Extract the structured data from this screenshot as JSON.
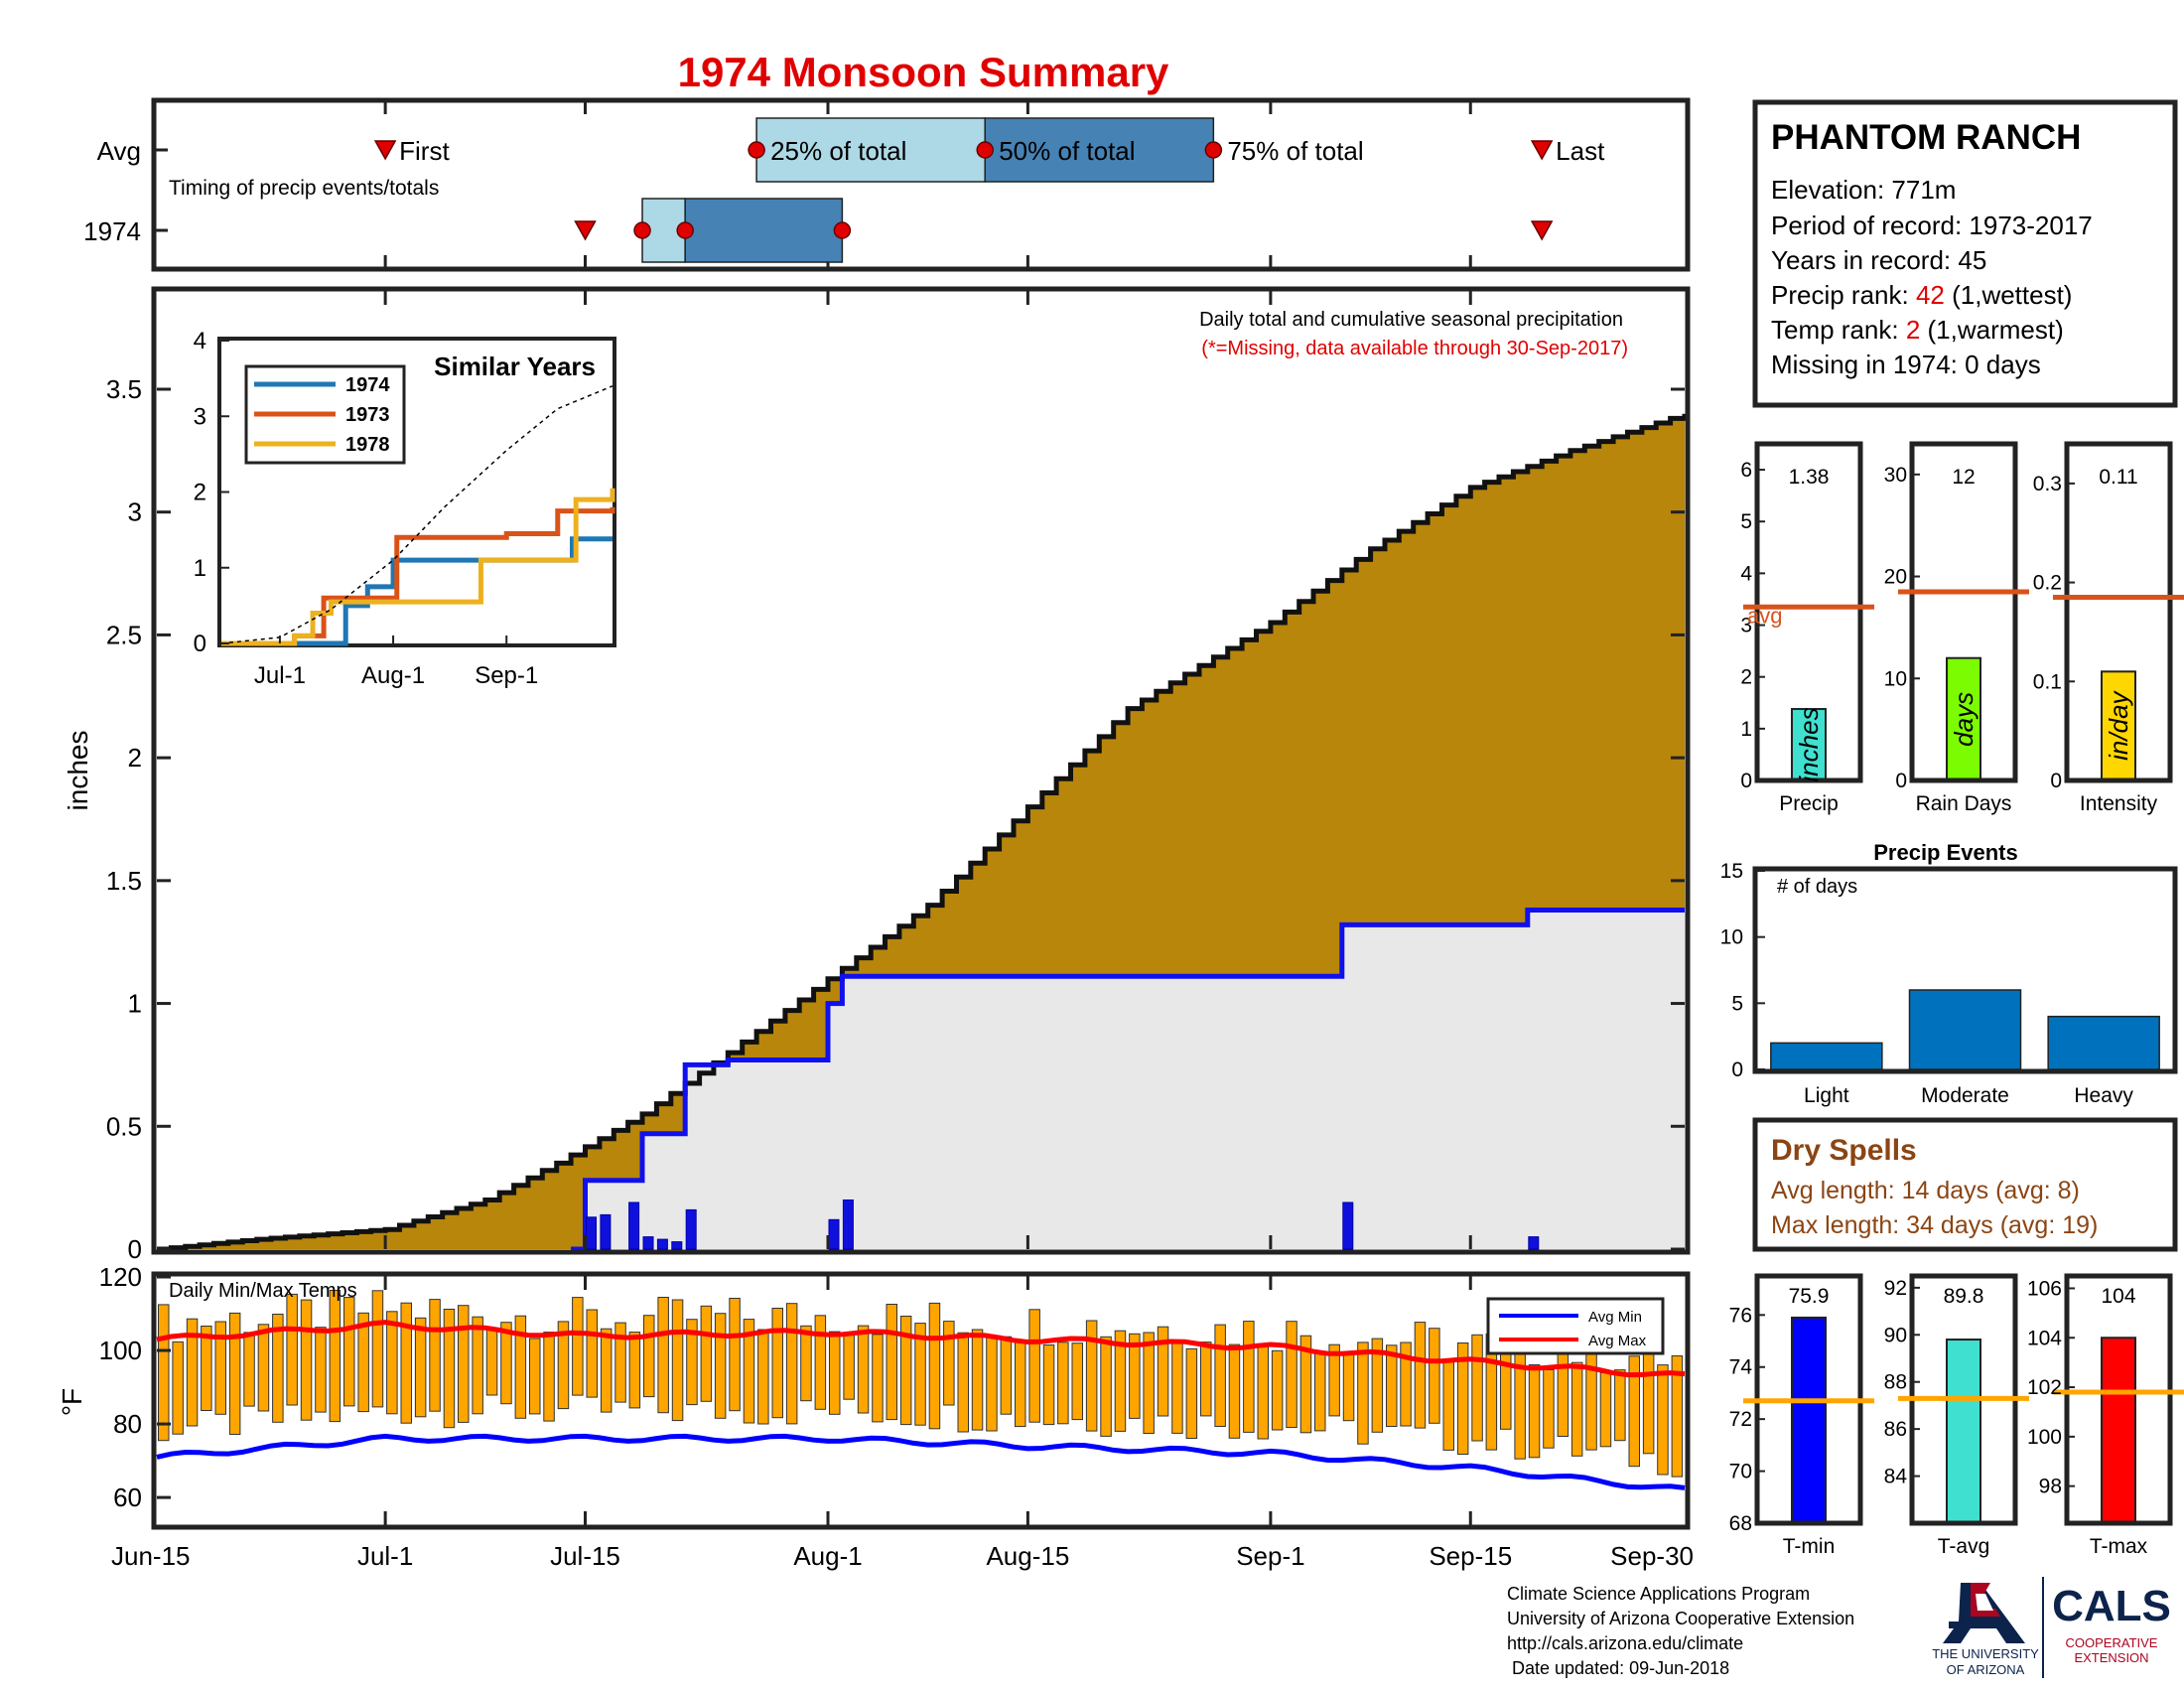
{
  "title": "1974 Monsoon Summary",
  "timing": {
    "row_avg": "Avg",
    "row_year": "1974",
    "caption": "Timing of precip events/totals",
    "first_label": "First",
    "p25_label": "25% of total",
    "p50_label": "50% of total",
    "p75_label": "75% of total",
    "last_label": "Last",
    "avg": {
      "first": "2000-07-01",
      "p25": "2000-07-27",
      "p50": "2000-08-12",
      "p75": "2000-08-28",
      "last": "2000-09-20"
    },
    "year": {
      "first": "2000-07-15",
      "p25": "2000-07-19",
      "p50": "2000-07-22",
      "p75": "2000-08-02",
      "last": "2000-09-20"
    },
    "colors": {
      "light": "#add8e6",
      "dark": "#4682b4",
      "marker": "#e00000"
    }
  },
  "station": {
    "name": "PHANTOM RANCH",
    "elevation": "Elevation: 771m",
    "period": "Period of record: 1973-2017",
    "years": "Years in record: 45",
    "precip_rank_prefix": "Precip rank: ",
    "precip_rank_value": "42",
    "precip_rank_suffix": " (1,wettest)",
    "temp_rank_prefix": "Temp rank: ",
    "temp_rank_value": "2",
    "temp_rank_suffix": " (1,warmest)",
    "missing": "Missing in 1974: 0 days"
  },
  "main_chart": {
    "note1": "Daily total and cumulative seasonal precipitation",
    "note2": "(*=Missing, data available through 30-Sep-2017)",
    "ylabel": "inches",
    "ylim": [
      0,
      3.9
    ],
    "y_ticks": [
      "0",
      "0.5",
      "1",
      "1.5",
      "2",
      "2.5",
      "3",
      "3.5"
    ],
    "x_ticks": [
      "Jun-15",
      "Jul-1",
      "Jul-15",
      "Aug-1",
      "Aug-15",
      "Sep-1",
      "Sep-15",
      "Sep-30"
    ],
    "colors": {
      "avg_fill": "#b8860b",
      "year_fill": "#e8e8e8",
      "above_fill": "#228b22",
      "year_line": "#1010ee",
      "daily_bar": "#1010dd"
    }
  },
  "inset": {
    "title": "Similar Years",
    "y_ticks": [
      "0",
      "1",
      "2",
      "3",
      "4"
    ],
    "x_ticks": [
      "Jul-1",
      "Aug-1",
      "Sep-1"
    ],
    "legend": [
      "1974",
      "1973",
      "1978"
    ],
    "colors": [
      "#1f77b4",
      "#d95319",
      "#edb120"
    ]
  },
  "small_bars": {
    "precip": {
      "value": "1.38",
      "unit": "inches",
      "label": "Precip",
      "ticks": [
        "0",
        "1",
        "2",
        "3",
        "4",
        "5",
        "6"
      ],
      "avg_label": "avg",
      "color": "#40e0d0"
    },
    "raindays": {
      "value": "12",
      "unit": "days",
      "label": "Rain Days",
      "ticks": [
        "0",
        "10",
        "20",
        "30"
      ],
      "color": "#7cfc00"
    },
    "intensity": {
      "value": "0.11",
      "unit": "in/day",
      "label": "Intensity",
      "ticks": [
        "0",
        "0.1",
        "0.2",
        "0.3"
      ],
      "color": "#ffd700"
    },
    "avg_line_color": "#d95319"
  },
  "precip_events": {
    "title": "Precip Events",
    "ylabel": "# of days",
    "ticks": [
      "0",
      "5",
      "10",
      "15"
    ],
    "color": "#0072bd"
  },
  "dry_spells": {
    "title": "Dry Spells",
    "avg": "Avg length: 14 days (avg: 8)",
    "max": "Max length: 34 days (avg: 19)"
  },
  "temp_chart": {
    "label": "Daily Min/Max Temps",
    "ylabel": "°F",
    "ticks": [
      "60",
      "80",
      "100",
      "120"
    ],
    "legend_min": "Avg Min",
    "legend_max": "Avg Max",
    "colors": {
      "bar": "#ffa500",
      "min": "#0000ff",
      "max": "#ff0000"
    }
  },
  "temp_bars": {
    "tmin": {
      "value": "75.9",
      "label": "T-min",
      "ticks": [
        "68",
        "70",
        "72",
        "74",
        "76"
      ],
      "color": "#0000ff"
    },
    "tavg": {
      "value": "89.8",
      "label": "T-avg",
      "ticks": [
        "84",
        "86",
        "88",
        "90",
        "92"
      ],
      "color": "#40e0d0"
    },
    "tmax": {
      "value": "104",
      "label": "T-max",
      "ticks": [
        "98",
        "100",
        "102",
        "104",
        "106"
      ],
      "color": "#ff0000"
    },
    "avg_line_color": "#ffa500"
  },
  "footer": {
    "line1": "Climate Science Applications Program",
    "line2": "University of Arizona Cooperative Extension",
    "line3": "http://cals.arizona.edu/climate",
    "line4": " Date updated: 09-Jun-2018",
    "ua_line1": "THE UNIVERSITY",
    "ua_line2": "OF ARIZONA",
    "cals": "CALS",
    "coop1": "COOPERATIVE",
    "coop2": "EXTENSION"
  },
  "chart_data": [
    {
      "type": "area",
      "title": "Daily total and cumulative seasonal precipitation",
      "ylabel": "inches",
      "ylim": [
        0,
        3.9
      ],
      "x_range": [
        "2000-06-15",
        "2000-09-30"
      ],
      "series": [
        {
          "name": "Avg",
          "x": [
            "2000-06-15",
            "2000-06-22",
            "2000-07-01",
            "2000-07-08",
            "2000-07-13",
            "2000-07-19",
            "2000-07-25",
            "2000-08-01",
            "2000-08-08",
            "2000-08-15",
            "2000-08-22",
            "2000-09-01",
            "2000-09-08",
            "2000-09-15",
            "2000-09-22",
            "2000-09-30"
          ],
          "values": [
            0,
            0.04,
            0.08,
            0.2,
            0.35,
            0.55,
            0.8,
            1.1,
            1.4,
            1.8,
            2.2,
            2.55,
            2.85,
            3.1,
            3.25,
            3.4
          ]
        },
        {
          "name": "1974",
          "x": [
            "2000-06-15",
            "2000-07-14",
            "2000-07-15",
            "2000-07-19",
            "2000-07-22",
            "2000-07-25",
            "2000-08-01",
            "2000-08-02",
            "2000-09-05",
            "2000-09-06",
            "2000-09-18",
            "2000-09-19",
            "2000-09-30"
          ],
          "values": [
            0,
            0,
            0.28,
            0.47,
            0.75,
            0.77,
            1.0,
            1.11,
            1.11,
            1.32,
            1.32,
            1.38,
            1.38
          ]
        },
        {
          "name": "daily",
          "x": [
            "2000-07-15",
            "2000-07-16",
            "2000-07-18",
            "2000-07-19",
            "2000-07-20",
            "2000-07-21",
            "2000-07-22",
            "2000-08-01",
            "2000-08-02",
            "2000-09-06",
            "2000-09-19"
          ],
          "values": [
            0.13,
            0.14,
            0.19,
            0.05,
            0.04,
            0.03,
            0.16,
            0.12,
            0.2,
            0.19,
            0.05
          ]
        }
      ]
    },
    {
      "type": "line",
      "title": "Similar Years",
      "ylim": [
        0,
        4
      ],
      "series": [
        {
          "name": "1974",
          "x": [
            "2000-06-15",
            "2000-07-14",
            "2000-07-19",
            "2000-07-25",
            "2000-08-01",
            "2000-09-05",
            "2000-09-19",
            "2000-09-30"
          ],
          "values": [
            0,
            0,
            0.5,
            0.75,
            1.1,
            1.1,
            1.38,
            1.38
          ]
        },
        {
          "name": "1973",
          "x": [
            "2000-06-15",
            "2000-07-05",
            "2000-07-13",
            "2000-07-25",
            "2000-08-02",
            "2000-09-01",
            "2000-09-15",
            "2000-09-30"
          ],
          "values": [
            0,
            0.1,
            0.6,
            0.6,
            1.4,
            1.45,
            1.75,
            1.8
          ]
        },
        {
          "name": "1978",
          "x": [
            "2000-06-15",
            "2000-07-05",
            "2000-07-10",
            "2000-07-15",
            "2000-08-10",
            "2000-08-25",
            "2000-09-20",
            "2000-09-30"
          ],
          "values": [
            0,
            0.1,
            0.4,
            0.55,
            0.55,
            1.1,
            1.9,
            2.05
          ]
        },
        {
          "name": "Avg",
          "x": [
            "2000-06-15",
            "2000-07-01",
            "2000-07-15",
            "2000-08-01",
            "2000-08-15",
            "2000-09-01",
            "2000-09-15",
            "2000-09-30"
          ],
          "values": [
            0,
            0.08,
            0.45,
            1.1,
            1.8,
            2.55,
            3.1,
            3.4
          ]
        }
      ]
    },
    {
      "type": "bar",
      "title": "Precip",
      "categories": [
        "Precip"
      ],
      "values": [
        1.38
      ],
      "avg": 3.35,
      "ylim": [
        0,
        6.5
      ]
    },
    {
      "type": "bar",
      "title": "Rain Days",
      "categories": [
        "Rain Days"
      ],
      "values": [
        12
      ],
      "avg": 18.5,
      "ylim": [
        0,
        33
      ]
    },
    {
      "type": "bar",
      "title": "Intensity",
      "categories": [
        "Intensity"
      ],
      "values": [
        0.11
      ],
      "avg": 0.185,
      "ylim": [
        0,
        0.34
      ]
    },
    {
      "type": "bar",
      "title": "Precip Events",
      "categories": [
        "Light",
        "Moderate",
        "Heavy"
      ],
      "values": [
        2,
        6,
        4
      ],
      "ylim": [
        0,
        15
      ]
    },
    {
      "type": "bar",
      "title": "Daily Min/Max Temps",
      "ylabel": "°F",
      "ylim": [
        53,
        120
      ],
      "x_range": [
        "2000-06-15",
        "2000-09-30"
      ],
      "series": [
        {
          "name": "Avg Max",
          "x": [
            "2000-06-15",
            "2000-07-01",
            "2000-07-15",
            "2000-08-01",
            "2000-08-15",
            "2000-09-01",
            "2000-09-15",
            "2000-09-30"
          ],
          "values": [
            103,
            107,
            104,
            105,
            103,
            101,
            97,
            93
          ]
        },
        {
          "name": "Avg Min",
          "x": [
            "2000-06-15",
            "2000-07-01",
            "2000-07-15",
            "2000-08-01",
            "2000-08-15",
            "2000-09-01",
            "2000-09-15",
            "2000-09-30"
          ],
          "values": [
            71,
            76,
            76,
            76,
            74,
            72,
            68,
            62
          ]
        }
      ]
    },
    {
      "type": "bar",
      "title": "T-min",
      "categories": [
        "T-min"
      ],
      "values": [
        75.9
      ],
      "avg": 72.7,
      "ylim": [
        68,
        77.5
      ]
    },
    {
      "type": "bar",
      "title": "T-avg",
      "categories": [
        "T-avg"
      ],
      "values": [
        89.8
      ],
      "avg": 87.3,
      "ylim": [
        82,
        92.5
      ]
    },
    {
      "type": "bar",
      "title": "T-max",
      "categories": [
        "T-max"
      ],
      "values": [
        104
      ],
      "avg": 101.8,
      "ylim": [
        96.5,
        106.5
      ]
    }
  ]
}
